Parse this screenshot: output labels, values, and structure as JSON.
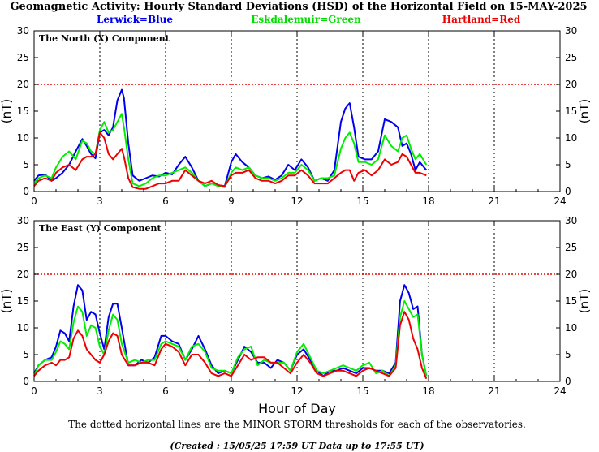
{
  "header": {
    "title": "Geomagnetic Activity: Hourly Standard Deviations (HSD) of the Horizontal Field on 15-MAY-2025",
    "legend": [
      {
        "label": "Lerwick=Blue",
        "color": "#0000ee"
      },
      {
        "label": "Eskdalemuir=Green",
        "color": "#00ee00"
      },
      {
        "label": "Hartland=Red",
        "color": "#ee0000"
      }
    ]
  },
  "footer": {
    "note": "The dotted horizontal lines are the MINOR STORM thresholds for each of the observatories.",
    "created": "(Created : 15/05/25 17:59 UT  Data up to 17:55 UT)"
  },
  "chart_data": [
    {
      "type": "line",
      "title": "The North (X) Component",
      "xlabel": "",
      "ylabel": "(nT)",
      "xlim": [
        0,
        24
      ],
      "ylim": [
        0,
        30
      ],
      "xticks": [
        0,
        3,
        6,
        9,
        12,
        15,
        18,
        21,
        24
      ],
      "yticks": [
        0,
        5,
        10,
        15,
        20,
        25,
        30
      ],
      "threshold": 20,
      "vlines": [
        3,
        6,
        9,
        12,
        15,
        18,
        21
      ],
      "series": [
        {
          "name": "Lerwick",
          "color": "#0000ee",
          "x": [
            0,
            0.2,
            0.5,
            0.8,
            1.0,
            1.3,
            1.6,
            1.9,
            2.2,
            2.4,
            2.6,
            2.8,
            3.0,
            3.2,
            3.4,
            3.6,
            3.8,
            4.0,
            4.1,
            4.3,
            4.5,
            4.8,
            5.1,
            5.4,
            5.7,
            6.0,
            6.3,
            6.6,
            6.9,
            7.2,
            7.5,
            7.8,
            8.1,
            8.4,
            8.7,
            9.0,
            9.2,
            9.5,
            9.8,
            10.1,
            10.4,
            10.7,
            11.0,
            11.3,
            11.6,
            11.9,
            12.2,
            12.5,
            12.8,
            13.1,
            13.4,
            13.7,
            14.0,
            14.2,
            14.4,
            14.6,
            14.8,
            15.1,
            15.4,
            15.7,
            16.0,
            16.3,
            16.6,
            16.8,
            17.0,
            17.2,
            17.4,
            17.6,
            17.9
          ],
          "y": [
            2.0,
            3.0,
            3.2,
            2.0,
            2.5,
            3.5,
            5.0,
            7.5,
            9.8,
            8.5,
            7.0,
            6.2,
            11.0,
            11.5,
            10.5,
            12.0,
            17.0,
            19.0,
            17.5,
            9.0,
            3.0,
            2.0,
            2.5,
            3.0,
            2.8,
            3.5,
            3.2,
            5.0,
            6.5,
            4.5,
            2.0,
            1.0,
            1.5,
            1.2,
            1.0,
            5.5,
            7.0,
            5.5,
            4.5,
            3.0,
            2.5,
            2.8,
            2.2,
            3.0,
            5.0,
            4.0,
            6.0,
            4.5,
            2.0,
            2.5,
            2.0,
            4.0,
            13.0,
            15.5,
            16.5,
            12.0,
            6.5,
            6.0,
            6.0,
            7.5,
            13.5,
            13.0,
            12.0,
            8.5,
            9.0,
            7.0,
            4.0,
            5.5,
            4.0
          ]
        },
        {
          "name": "Eskdalemuir",
          "color": "#00ee00",
          "x": [
            0,
            0.2,
            0.5,
            0.8,
            1.0,
            1.3,
            1.6,
            1.9,
            2.2,
            2.4,
            2.6,
            2.8,
            3.0,
            3.2,
            3.4,
            3.6,
            3.8,
            4.0,
            4.1,
            4.3,
            4.5,
            4.8,
            5.1,
            5.4,
            5.7,
            6.0,
            6.3,
            6.6,
            6.9,
            7.2,
            7.5,
            7.8,
            8.1,
            8.4,
            8.7,
            9.0,
            9.2,
            9.5,
            9.8,
            10.1,
            10.4,
            10.7,
            11.0,
            11.3,
            11.6,
            11.9,
            12.2,
            12.5,
            12.8,
            13.1,
            13.4,
            13.7,
            14.0,
            14.2,
            14.4,
            14.6,
            14.8,
            15.1,
            15.4,
            15.7,
            16.0,
            16.3,
            16.6,
            16.8,
            17.0,
            17.2,
            17.4,
            17.6,
            17.9
          ],
          "y": [
            1.5,
            2.5,
            3.0,
            2.5,
            4.5,
            6.5,
            7.5,
            6.0,
            9.5,
            9.0,
            7.5,
            7.0,
            11.5,
            13.0,
            11.0,
            11.5,
            13.0,
            14.5,
            12.0,
            6.0,
            1.5,
            1.0,
            1.5,
            2.5,
            3.0,
            3.0,
            3.5,
            4.0,
            4.5,
            3.5,
            2.0,
            1.0,
            1.5,
            1.0,
            0.8,
            3.5,
            4.5,
            4.0,
            4.5,
            3.0,
            2.5,
            2.5,
            2.0,
            2.5,
            3.5,
            3.5,
            5.0,
            4.0,
            2.0,
            2.5,
            2.5,
            3.0,
            8.0,
            10.0,
            11.0,
            9.0,
            5.5,
            5.5,
            5.0,
            6.0,
            10.5,
            8.5,
            7.5,
            10.0,
            10.5,
            8.0,
            6.0,
            7.0,
            5.0
          ]
        },
        {
          "name": "Hartland",
          "color": "#ee0000",
          "x": [
            0,
            0.2,
            0.5,
            0.8,
            1.0,
            1.3,
            1.6,
            1.9,
            2.2,
            2.4,
            2.6,
            2.8,
            3.0,
            3.2,
            3.4,
            3.6,
            3.8,
            4.0,
            4.1,
            4.3,
            4.5,
            4.8,
            5.1,
            5.4,
            5.7,
            6.0,
            6.3,
            6.6,
            6.9,
            7.2,
            7.5,
            7.8,
            8.1,
            8.4,
            8.7,
            9.0,
            9.2,
            9.5,
            9.8,
            10.1,
            10.4,
            10.7,
            11.0,
            11.3,
            11.6,
            11.9,
            12.2,
            12.5,
            12.8,
            13.1,
            13.4,
            13.7,
            14.0,
            14.2,
            14.4,
            14.6,
            14.8,
            15.1,
            15.4,
            15.7,
            16.0,
            16.3,
            16.6,
            16.8,
            17.0,
            17.2,
            17.4,
            17.6,
            17.9
          ],
          "y": [
            1.0,
            2.0,
            2.5,
            2.0,
            3.5,
            4.5,
            5.0,
            4.0,
            6.0,
            6.5,
            6.5,
            7.0,
            11.0,
            10.0,
            7.0,
            6.0,
            7.0,
            8.0,
            6.5,
            2.5,
            0.8,
            0.5,
            0.5,
            1.0,
            1.5,
            1.5,
            2.0,
            2.0,
            4.0,
            3.0,
            2.0,
            1.5,
            2.0,
            1.2,
            1.0,
            3.0,
            3.5,
            3.5,
            4.0,
            2.5,
            2.0,
            2.0,
            1.5,
            2.0,
            3.0,
            3.0,
            4.0,
            3.0,
            1.5,
            1.5,
            1.5,
            2.5,
            3.5,
            4.0,
            4.0,
            2.0,
            3.5,
            4.0,
            3.0,
            4.0,
            6.0,
            5.0,
            5.5,
            7.0,
            6.5,
            5.0,
            3.5,
            3.5,
            3.0
          ]
        }
      ]
    },
    {
      "type": "line",
      "title": "The East (Y) Component",
      "xlabel": "Hour of Day",
      "ylabel": "(nT)",
      "xlim": [
        0,
        24
      ],
      "ylim": [
        0,
        30
      ],
      "xticks": [
        0,
        3,
        6,
        9,
        12,
        15,
        18,
        21,
        24
      ],
      "yticks": [
        0,
        5,
        10,
        15,
        20,
        25,
        30
      ],
      "threshold": 20,
      "vlines": [
        3,
        6,
        9,
        12,
        15,
        18,
        21
      ],
      "series": [
        {
          "name": "Lerwick",
          "color": "#0000ee",
          "x": [
            0,
            0.2,
            0.5,
            0.8,
            1.0,
            1.2,
            1.4,
            1.6,
            1.8,
            2.0,
            2.2,
            2.4,
            2.6,
            2.8,
            3.0,
            3.2,
            3.4,
            3.6,
            3.8,
            4.0,
            4.3,
            4.6,
            4.9,
            5.2,
            5.5,
            5.8,
            6.0,
            6.3,
            6.6,
            6.9,
            7.2,
            7.5,
            7.8,
            8.1,
            8.4,
            8.7,
            9.0,
            9.3,
            9.6,
            9.9,
            10.2,
            10.5,
            10.8,
            11.1,
            11.4,
            11.7,
            12.0,
            12.3,
            12.6,
            12.9,
            13.2,
            13.5,
            13.8,
            14.1,
            14.4,
            14.7,
            15.0,
            15.3,
            15.6,
            15.9,
            16.2,
            16.5,
            16.7,
            16.9,
            17.1,
            17.3,
            17.5,
            17.7,
            17.9
          ],
          "y": [
            1.5,
            3.0,
            4.0,
            4.5,
            6.5,
            9.5,
            9.0,
            7.5,
            14.0,
            18.0,
            17.0,
            11.5,
            13.0,
            12.5,
            9.0,
            6.0,
            12.0,
            14.5,
            14.5,
            10.0,
            3.0,
            3.0,
            4.0,
            3.5,
            4.5,
            8.5,
            8.5,
            7.5,
            7.0,
            4.0,
            6.0,
            8.5,
            6.0,
            3.0,
            1.5,
            2.0,
            1.5,
            4.0,
            6.5,
            5.5,
            3.5,
            3.5,
            2.5,
            4.0,
            3.5,
            2.0,
            5.0,
            6.0,
            4.0,
            2.0,
            1.0,
            2.0,
            2.0,
            2.5,
            2.0,
            1.5,
            2.5,
            2.5,
            2.0,
            2.0,
            1.5,
            3.5,
            15.0,
            18.0,
            16.5,
            13.5,
            14.0,
            5.0,
            1.0
          ]
        },
        {
          "name": "Eskdalemuir",
          "color": "#00ee00",
          "x": [
            0,
            0.2,
            0.5,
            0.8,
            1.0,
            1.2,
            1.4,
            1.6,
            1.8,
            2.0,
            2.2,
            2.4,
            2.6,
            2.8,
            3.0,
            3.2,
            3.4,
            3.6,
            3.8,
            4.0,
            4.3,
            4.6,
            4.9,
            5.2,
            5.5,
            5.8,
            6.0,
            6.3,
            6.6,
            6.9,
            7.2,
            7.5,
            7.8,
            8.1,
            8.4,
            8.7,
            9.0,
            9.3,
            9.6,
            9.9,
            10.2,
            10.5,
            10.8,
            11.1,
            11.4,
            11.7,
            12.0,
            12.3,
            12.6,
            12.9,
            13.2,
            13.5,
            13.8,
            14.1,
            14.4,
            14.7,
            15.0,
            15.3,
            15.6,
            15.9,
            16.2,
            16.5,
            16.7,
            16.9,
            17.1,
            17.3,
            17.5,
            17.7,
            17.9
          ],
          "y": [
            1.0,
            3.0,
            4.0,
            4.0,
            5.5,
            7.5,
            7.0,
            6.0,
            11.0,
            14.0,
            13.0,
            8.5,
            10.5,
            10.0,
            6.5,
            5.0,
            9.5,
            12.5,
            11.5,
            7.0,
            3.5,
            4.0,
            3.5,
            4.0,
            4.0,
            7.0,
            7.5,
            7.0,
            6.5,
            4.0,
            6.5,
            7.0,
            5.5,
            2.5,
            2.0,
            2.0,
            1.5,
            4.5,
            6.0,
            6.5,
            3.0,
            4.0,
            3.5,
            3.5,
            3.5,
            2.0,
            5.5,
            7.0,
            4.5,
            2.0,
            1.5,
            2.0,
            2.5,
            3.0,
            2.5,
            2.0,
            3.0,
            3.5,
            1.5,
            2.0,
            1.0,
            3.0,
            12.0,
            15.0,
            13.5,
            12.0,
            12.5,
            5.0,
            1.0
          ]
        },
        {
          "name": "Hartland",
          "color": "#ee0000",
          "x": [
            0,
            0.2,
            0.5,
            0.8,
            1.0,
            1.2,
            1.4,
            1.6,
            1.8,
            2.0,
            2.2,
            2.4,
            2.6,
            2.8,
            3.0,
            3.2,
            3.4,
            3.6,
            3.8,
            4.0,
            4.3,
            4.6,
            4.9,
            5.2,
            5.5,
            5.8,
            6.0,
            6.3,
            6.6,
            6.9,
            7.2,
            7.5,
            7.8,
            8.1,
            8.4,
            8.7,
            9.0,
            9.3,
            9.6,
            9.9,
            10.2,
            10.5,
            10.8,
            11.1,
            11.4,
            11.7,
            12.0,
            12.3,
            12.6,
            12.9,
            13.2,
            13.5,
            13.8,
            14.1,
            14.4,
            14.7,
            15.0,
            15.3,
            15.6,
            15.9,
            16.2,
            16.5,
            16.7,
            16.9,
            17.1,
            17.3,
            17.5,
            17.7,
            17.9
          ],
          "y": [
            1.0,
            2.0,
            3.0,
            3.5,
            3.0,
            4.0,
            4.0,
            4.5,
            8.0,
            9.5,
            8.5,
            6.0,
            5.0,
            4.0,
            3.5,
            5.0,
            7.5,
            9.0,
            8.5,
            5.0,
            3.0,
            3.0,
            3.5,
            3.5,
            3.0,
            6.0,
            7.0,
            6.5,
            5.5,
            3.0,
            5.0,
            5.0,
            3.5,
            1.5,
            1.0,
            1.5,
            1.0,
            3.0,
            5.0,
            4.0,
            4.5,
            4.5,
            3.5,
            3.5,
            2.5,
            1.5,
            3.5,
            5.0,
            3.5,
            1.5,
            1.0,
            1.5,
            2.0,
            2.0,
            1.5,
            1.0,
            2.0,
            2.5,
            2.0,
            1.5,
            1.0,
            2.5,
            10.5,
            13.0,
            11.5,
            8.0,
            6.0,
            2.5,
            0.5
          ]
        }
      ]
    }
  ]
}
